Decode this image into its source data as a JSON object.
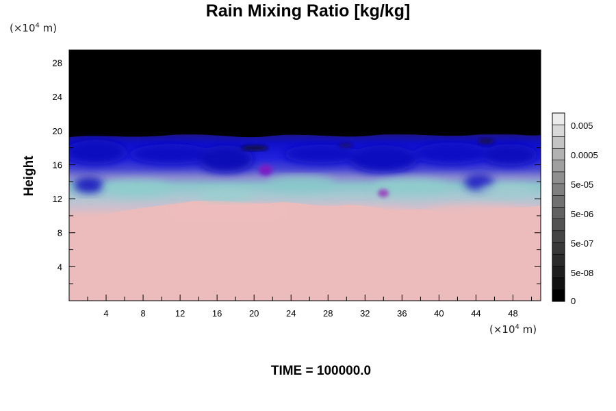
{
  "chart_data": {
    "type": "heatmap",
    "title": "Rain Mixing Ratio [kg/kg]",
    "ylabel": "Height",
    "xlabel": "",
    "x_unit": "(×10",
    "x_unit_exp": "4",
    "x_unit_tail": " m)",
    "y_unit": "(×10",
    "y_unit_exp": "4",
    "y_unit_tail": " m)",
    "x_ticks": [
      "4",
      "8",
      "12",
      "16",
      "20",
      "24",
      "28",
      "32",
      "36",
      "40",
      "44",
      "48"
    ],
    "y_ticks": [
      "4",
      "8",
      "12",
      "16",
      "20",
      "24",
      "28"
    ],
    "xlim": [
      0,
      51
    ],
    "ylim": [
      0,
      29.5
    ],
    "grid": false,
    "colorbar": {
      "labels": [
        "0.005",
        "0.0005",
        "5e-05",
        "5e-06",
        "5e-07",
        "5e-08",
        "0"
      ],
      "levels": 16,
      "colors_light_to_dark": [
        "#ececec",
        "#d8d8d8",
        "#c4c4c4",
        "#b2b2b2",
        "#a0a0a0",
        "#8f8f8f",
        "#7f7f7f",
        "#707070",
        "#616161",
        "#535353",
        "#454545",
        "#383838",
        "#2b2b2b",
        "#1e1e1e",
        "#121212",
        "#000000"
      ]
    },
    "field_description_colors": {
      "top": "#000000",
      "deep_blue": "#1010c8",
      "blue": "#3838d8",
      "lavender": "#8a86cc",
      "teal": "#8ec8c8",
      "pink": "#ecbcbc",
      "magenta": "#9a40c0"
    },
    "layers_height": {
      "black_above": 19.6,
      "blue_top": 19.6,
      "blue_bottom": 13.5,
      "mixed_bottom": 10.5,
      "pink_below": 10.5
    }
  },
  "footer": {
    "time_label": "TIME = 100000.0"
  }
}
